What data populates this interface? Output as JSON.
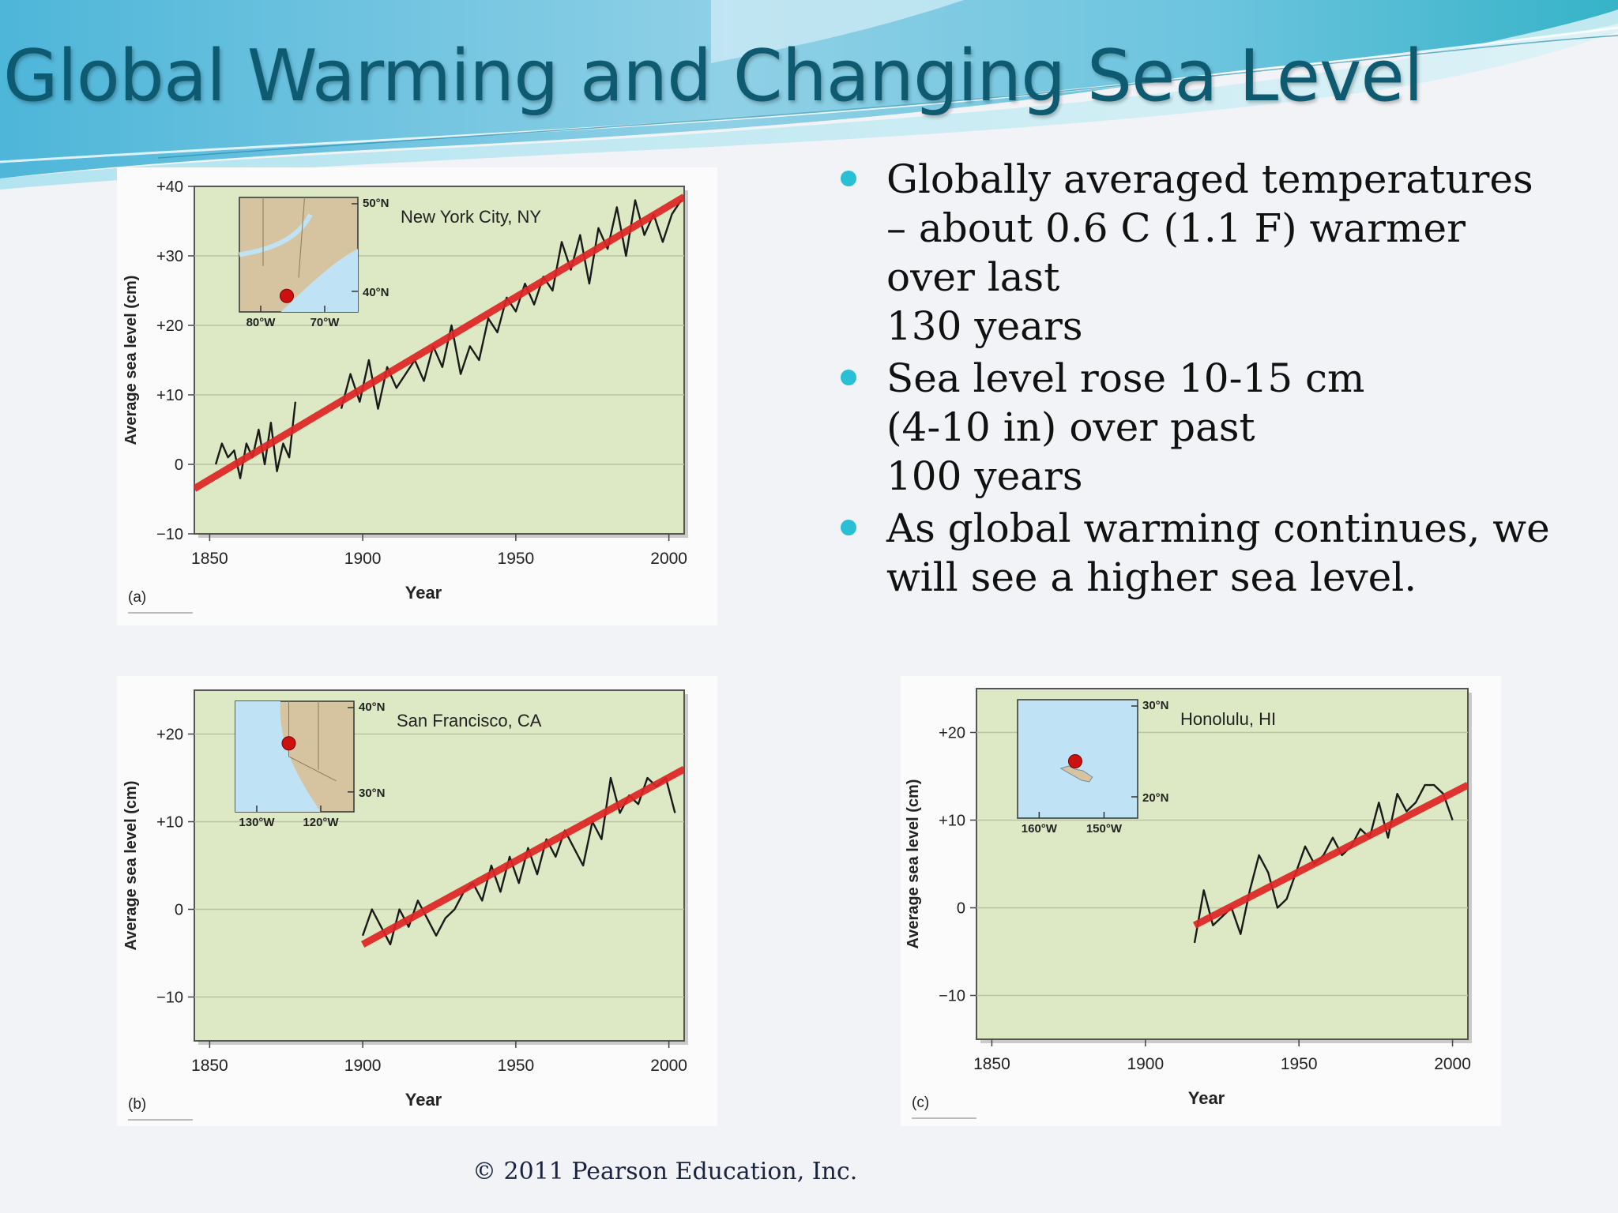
{
  "title": "Global Warming and Changing Sea Level",
  "bullets": [
    {
      "lines": [
        "Globally averaged temperatures",
        "– about 0.6  C  (1.1  F) warmer",
        "over last",
        "130 years"
      ]
    },
    {
      "lines": [
        "Sea level rose 10-15 cm",
        "(4-10 in) over past",
        "100 years"
      ]
    },
    {
      "lines": [
        "As global warming continues, we",
        "will see a higher sea level."
      ]
    }
  ],
  "copyright": "© 2011 Pearson Education, Inc.",
  "colors": {
    "title": "#0e5a70",
    "bullet": "#29c0d6",
    "plot_bg": "#dde9c4",
    "trend": "#e02424",
    "series": "#1a1a1a",
    "map_land": "#d6c4a0",
    "map_water": "#bfe2f4",
    "marker": "#cc1111"
  },
  "chart_data": [
    {
      "type": "line",
      "panel_label": "(a)",
      "location": "New York City, NY",
      "xlabel": "Year",
      "ylabel": "Average sea level (cm)",
      "xlim": [
        1845,
        2005
      ],
      "ylim": [
        -10,
        40
      ],
      "xticks": [
        1850,
        1900,
        1950,
        2000
      ],
      "yticks": [
        40,
        30,
        20,
        10,
        0,
        -10
      ],
      "ytick_labels": [
        "+40",
        "+30",
        "+20",
        "+10",
        "0",
        "−10"
      ],
      "grid": "horizontal",
      "inset_map": {
        "lat_labels": [
          "50°N",
          "40°N"
        ],
        "lon_labels": [
          "80°W",
          "70°W"
        ],
        "ocean": "mixed"
      },
      "series": [
        {
          "x": [
            1852,
            1854,
            1856,
            1858,
            1860,
            1862,
            1864,
            1866,
            1868,
            1870,
            1872,
            1874,
            1876,
            1878
          ],
          "y": [
            0,
            3,
            1,
            2,
            -2,
            3,
            1,
            5,
            0,
            6,
            -1,
            3,
            1,
            9
          ]
        },
        {
          "x": [
            1893,
            1896,
            1899,
            1902,
            1905,
            1908,
            1911,
            1914,
            1917,
            1920,
            1923,
            1926,
            1929,
            1932,
            1935,
            1938,
            1941,
            1944,
            1947,
            1950,
            1953,
            1956,
            1959,
            1962,
            1965,
            1968,
            1971,
            1974,
            1977,
            1980,
            1983,
            1986,
            1989,
            1992,
            1995,
            1998,
            2001,
            2004
          ],
          "y": [
            8,
            13,
            9,
            15,
            8,
            14,
            11,
            13,
            15,
            12,
            17,
            14,
            20,
            13,
            17,
            15,
            21,
            19,
            24,
            22,
            26,
            23,
            27,
            25,
            32,
            28,
            33,
            26,
            34,
            31,
            37,
            30,
            38,
            33,
            36,
            32,
            36,
            38
          ]
        }
      ],
      "trend": {
        "x": [
          1845,
          2005
        ],
        "y": [
          -3.5,
          38.5
        ]
      }
    },
    {
      "type": "line",
      "panel_label": "(b)",
      "location": "San Francisco, CA",
      "xlabel": "Year",
      "ylabel": "Average sea level (cm)",
      "xlim": [
        1845,
        2005
      ],
      "ylim": [
        -15,
        25
      ],
      "xticks": [
        1850,
        1900,
        1950,
        2000
      ],
      "yticks": [
        20,
        10,
        0,
        -10
      ],
      "ytick_labels": [
        "+20",
        "+10",
        "0",
        "−10"
      ],
      "grid": "horizontal",
      "inset_map": {
        "lat_labels": [
          "40°N",
          "30°N"
        ],
        "lon_labels": [
          "130°W",
          "120°W"
        ],
        "ocean": "coast"
      },
      "series": [
        {
          "x": [
            1900,
            1903,
            1906,
            1909,
            1912,
            1915,
            1918,
            1921,
            1924,
            1927,
            1930,
            1933,
            1936,
            1939,
            1942,
            1945,
            1948,
            1951,
            1954,
            1957,
            1960,
            1963,
            1966,
            1969,
            1972,
            1975,
            1978,
            1981,
            1984,
            1987,
            1990,
            1993,
            1996,
            1999,
            2002
          ],
          "y": [
            -3,
            0,
            -2,
            -4,
            0,
            -2,
            1,
            -1,
            -3,
            -1,
            0,
            2,
            3,
            1,
            5,
            2,
            6,
            3,
            7,
            4,
            8,
            6,
            9,
            7,
            5,
            10,
            8,
            15,
            11,
            13,
            12,
            15,
            14,
            15,
            11
          ]
        }
      ],
      "trend": {
        "x": [
          1900,
          2005
        ],
        "y": [
          -4,
          16
        ]
      }
    },
    {
      "type": "line",
      "panel_label": "(c)",
      "location": "Honolulu, HI",
      "xlabel": "Year",
      "ylabel": "Average sea level (cm)",
      "xlim": [
        1845,
        2005
      ],
      "ylim": [
        -15,
        25
      ],
      "xticks": [
        1850,
        1900,
        1950,
        2000
      ],
      "yticks": [
        20,
        10,
        0,
        -10
      ],
      "ytick_labels": [
        "+20",
        "+10",
        "0",
        "−10"
      ],
      "grid": "horizontal",
      "inset_map": {
        "lat_labels": [
          "30°N",
          "20°N"
        ],
        "lon_labels": [
          "160°W",
          "150°W"
        ],
        "ocean": "open"
      },
      "series": [
        {
          "x": [
            1916,
            1919,
            1922,
            1925,
            1928,
            1931,
            1934,
            1937,
            1940,
            1943,
            1946,
            1949,
            1952,
            1955,
            1958,
            1961,
            1964,
            1967,
            1970,
            1973,
            1976,
            1979,
            1982,
            1985,
            1988,
            1991,
            1994,
            1997,
            2000
          ],
          "y": [
            -4,
            2,
            -2,
            -1,
            0,
            -3,
            2,
            6,
            4,
            0,
            1,
            4,
            7,
            5,
            6,
            8,
            6,
            7,
            9,
            8,
            12,
            8,
            13,
            11,
            12,
            14,
            14,
            13,
            10
          ]
        }
      ],
      "trend": {
        "x": [
          1916,
          2005
        ],
        "y": [
          -2,
          14
        ]
      }
    }
  ]
}
